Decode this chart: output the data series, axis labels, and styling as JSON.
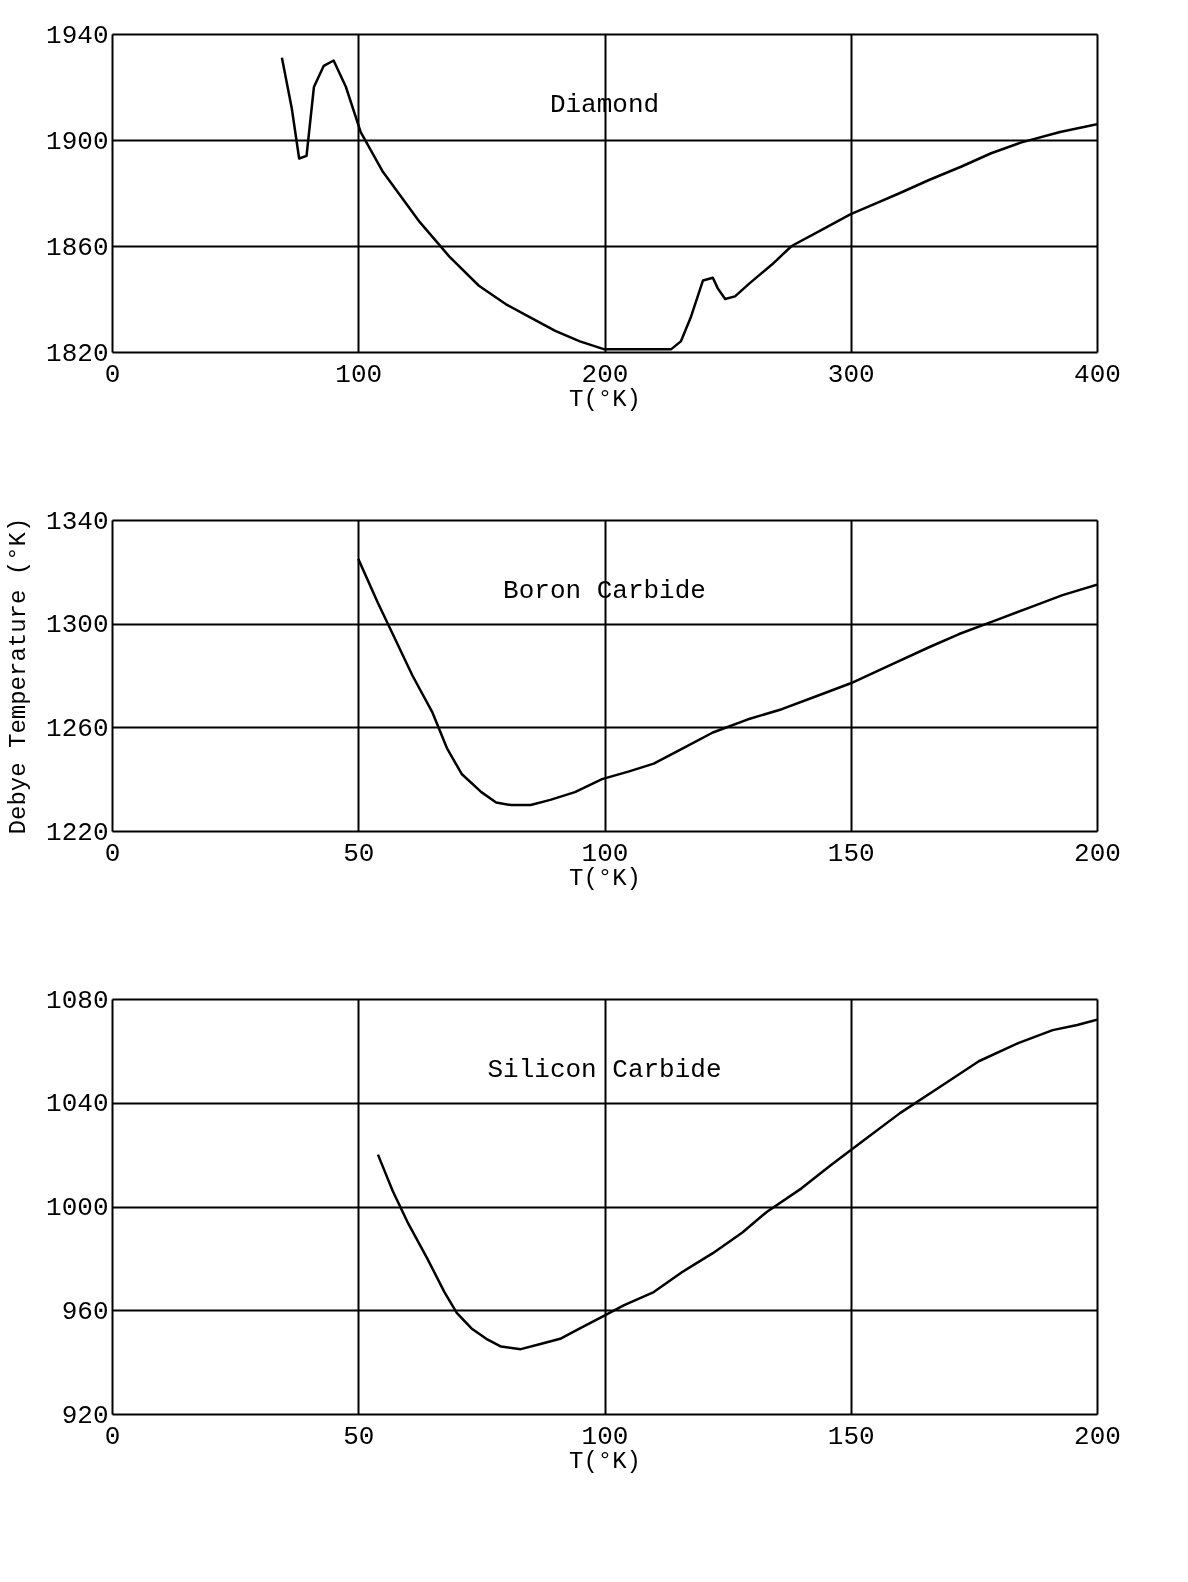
{
  "chart_data": [
    {
      "type": "line",
      "title": "Diamond",
      "xlabel": "T(°K)",
      "xlim": [
        0,
        400
      ],
      "xticks": [
        0,
        100,
        200,
        300,
        400
      ],
      "ylim": [
        1820,
        1940
      ],
      "yticks": [
        1820,
        1860,
        1900,
        1940
      ],
      "grid": true,
      "series": [
        {
          "color": "#000000",
          "x": [
            69,
            73,
            76,
            79,
            82,
            86,
            90,
            95,
            101,
            110,
            125,
            137,
            149,
            160,
            170,
            180,
            190,
            200,
            210,
            220,
            227,
            231,
            235,
            240,
            244,
            246,
            249,
            253,
            259,
            268,
            276,
            288,
            300,
            310,
            320,
            332,
            345,
            357,
            369,
            385,
            400
          ],
          "values": [
            1931,
            1912,
            1893,
            1894,
            1920,
            1928,
            1930,
            1920,
            1903,
            1888,
            1869,
            1856,
            1845,
            1838,
            1833,
            1828,
            1824,
            1821,
            1821,
            1821,
            1821,
            1824,
            1833,
            1847,
            1848,
            1844,
            1840,
            1841,
            1846,
            1853,
            1860,
            1866,
            1872,
            1876,
            1880,
            1885,
            1890,
            1895,
            1899,
            1903,
            1906
          ]
        }
      ]
    },
    {
      "type": "line",
      "title": "Boron Carbide",
      "xlabel": "T(°K)",
      "ylabel": "Debye Temperature (°K)",
      "xlim": [
        0,
        200
      ],
      "xticks": [
        0,
        50,
        100,
        150,
        200
      ],
      "ylim": [
        1220,
        1340
      ],
      "yticks": [
        1220,
        1260,
        1300,
        1340
      ],
      "grid": true,
      "series": [
        {
          "color": "#000000",
          "x": [
            50,
            54,
            57,
            61,
            65,
            68,
            71,
            75,
            78,
            81,
            85,
            89,
            94,
            99.5,
            105,
            110,
            116,
            122,
            129,
            136,
            143,
            150,
            158,
            166,
            172,
            179,
            186,
            193,
            200
          ],
          "values": [
            1325,
            1308,
            1296,
            1280,
            1266,
            1252,
            1242,
            1235,
            1231,
            1230,
            1230,
            1232,
            1235,
            1240,
            1243,
            1246,
            1252,
            1258,
            1263,
            1267,
            1272,
            1277,
            1284,
            1291,
            1296,
            1301,
            1306,
            1311,
            1315
          ]
        }
      ]
    },
    {
      "type": "line",
      "title": "Silicon Carbide",
      "xlabel": "T(°K)",
      "xlim": [
        0,
        200
      ],
      "xticks": [
        0,
        50,
        100,
        150,
        200
      ],
      "ylim": [
        920,
        1080
      ],
      "yticks": [
        920,
        960,
        1000,
        1040,
        1080
      ],
      "grid": true,
      "series": [
        {
          "color": "#000000",
          "x": [
            54,
            57,
            60,
            64,
            67.5,
            70,
            73,
            76,
            79,
            83,
            87,
            91,
            95,
            99,
            104,
            110,
            116,
            122,
            128,
            133,
            140,
            146,
            153,
            160,
            168,
            176,
            184,
            191,
            196,
            200
          ],
          "values": [
            1020,
            1006,
            994,
            980,
            967,
            959,
            953,
            949,
            946,
            945,
            947,
            949,
            953,
            957,
            962,
            967,
            975,
            982,
            990,
            998,
            1007,
            1016,
            1026,
            1036,
            1046,
            1056,
            1063,
            1068,
            1070,
            1072
          ]
        }
      ]
    }
  ]
}
